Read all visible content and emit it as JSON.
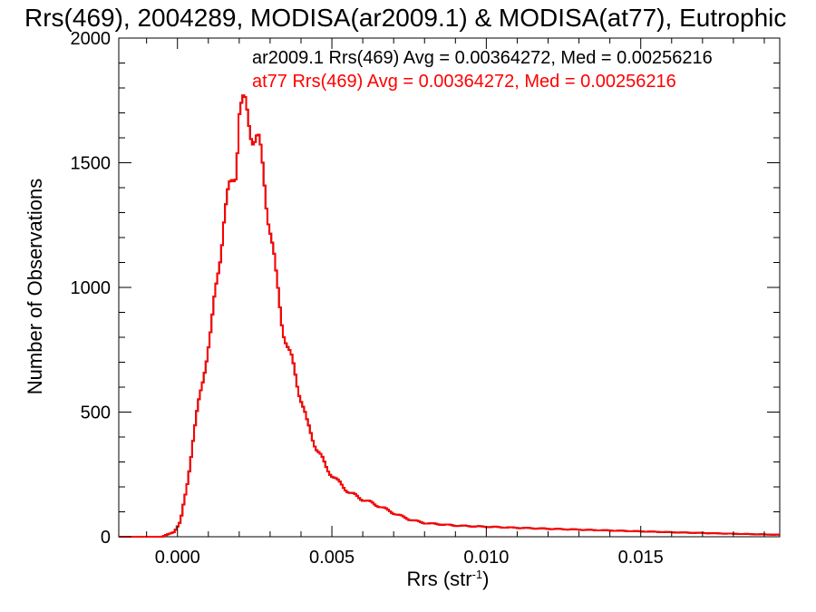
{
  "chart_data": {
    "type": "step",
    "title": "Rrs(469), 2004289, MODISA(ar2009.1) & MODISA(at77), Eutrophic",
    "xlabel_base": "Rrs (str",
    "xlabel_sup": "-1",
    "xlabel_tail": ")",
    "ylabel": "Number of Observations",
    "xlim": [
      -0.0019,
      0.0195
    ],
    "ylim": [
      0,
      2000
    ],
    "x_ticks": [
      {
        "value": 0.0,
        "label": "0.000"
      },
      {
        "value": 0.005,
        "label": "0.005"
      },
      {
        "value": 0.01,
        "label": "0.010"
      },
      {
        "value": 0.015,
        "label": "0.015"
      }
    ],
    "y_ticks": [
      {
        "value": 0,
        "label": "0"
      },
      {
        "value": 500,
        "label": "500"
      },
      {
        "value": 1000,
        "label": "1000"
      },
      {
        "value": 1500,
        "label": "1500"
      },
      {
        "value": 2000,
        "label": "2000"
      }
    ],
    "legend": [
      {
        "text": "ar2009.1 Rrs(469) Avg = 0.00364272, Med = 0.00256216",
        "color": "#000000"
      },
      {
        "text": "at77 Rrs(469) Avg = 0.00364272, Med = 0.00256216",
        "color": "#ff0000"
      }
    ],
    "series_colors": [
      "#000000",
      "#ff0000"
    ],
    "keypoints": [
      [
        -0.0019,
        0
      ],
      [
        -0.0005,
        0
      ],
      [
        -0.0003,
        10
      ],
      [
        -0.0001,
        20
      ],
      [
        0.0001,
        60
      ],
      [
        0.0003,
        200
      ],
      [
        0.0005,
        380
      ],
      [
        0.0007,
        540
      ],
      [
        0.0009,
        700
      ],
      [
        0.0011,
        820
      ],
      [
        0.0013,
        1060
      ],
      [
        0.0015,
        1270
      ],
      [
        0.0017,
        1380
      ],
      [
        0.0019,
        1500
      ],
      [
        0.002,
        1720
      ],
      [
        0.0022,
        1700
      ],
      [
        0.0024,
        1650
      ],
      [
        0.0026,
        1580
      ],
      [
        0.0028,
        1440
      ],
      [
        0.003,
        1250
      ],
      [
        0.0032,
        1020
      ],
      [
        0.0034,
        860
      ],
      [
        0.0036,
        740
      ],
      [
        0.0038,
        660
      ],
      [
        0.004,
        560
      ],
      [
        0.0042,
        450
      ],
      [
        0.0045,
        360
      ],
      [
        0.0048,
        280
      ],
      [
        0.0052,
        220
      ],
      [
        0.0056,
        175
      ],
      [
        0.006,
        150
      ],
      [
        0.0065,
        125
      ],
      [
        0.007,
        95
      ],
      [
        0.0075,
        70
      ],
      [
        0.008,
        55
      ],
      [
        0.009,
        45
      ],
      [
        0.01,
        40
      ],
      [
        0.012,
        32
      ],
      [
        0.014,
        25
      ],
      [
        0.016,
        18
      ],
      [
        0.018,
        12
      ],
      [
        0.0195,
        8
      ]
    ]
  }
}
